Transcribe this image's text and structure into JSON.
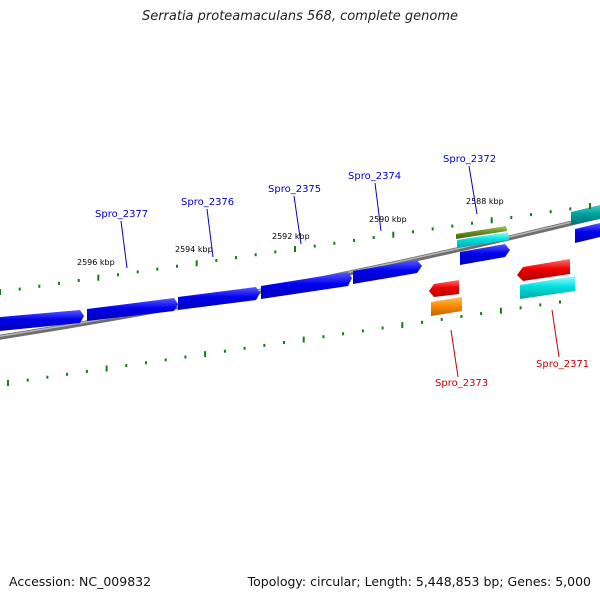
{
  "title": "Serratia proteamaculans 568, complete genome",
  "footer": {
    "accession": "Accession: NC_009832",
    "summary": "Topology: circular; Length: 5,448,853 bp; Genes: 5,000"
  },
  "scale_labels": [
    "2596 kbp",
    "2594 kbp",
    "2592 kbp",
    "2590 kbp",
    "2588 kbp"
  ],
  "gene_labels_top": [
    "Spro_2377",
    "Spro_2376",
    "Spro_2375",
    "Spro_2374",
    "Spro_2372"
  ],
  "gene_labels_bottom": [
    "Spro_2373",
    "Spro_2371"
  ],
  "colors": {
    "forward_gene": "#0000ee",
    "reverse_gene": "#ee0000",
    "rna": "#ff8c00",
    "misc_feature": "#00dddd",
    "olive_feature": "#6b8e23",
    "teal_feature": "#00a0a0",
    "backbone": "#808080",
    "tick": "#1a7a1a",
    "label_forward": "#0000cc",
    "label_reverse": "#cc0000"
  }
}
